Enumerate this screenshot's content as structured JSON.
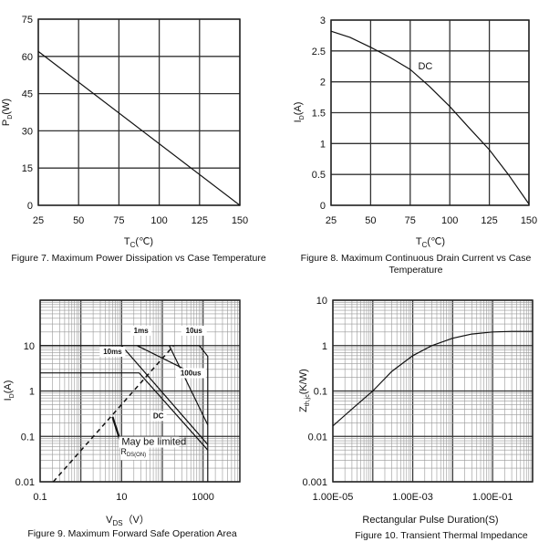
{
  "chart_data": [
    {
      "type": "line",
      "caption": [
        "Figure 7. Maximum Power Dissipation vs Case Temperature"
      ],
      "xlabel": {
        "main": "T",
        "sub": "C",
        "unit": "(℃)"
      },
      "ylabel": {
        "main": "P",
        "sub": "D",
        "unit": "(W)"
      },
      "xscale": "linear",
      "yscale": "linear",
      "xlim": [
        25,
        150
      ],
      "ylim": [
        0,
        75
      ],
      "xticks": [
        25,
        50,
        75,
        100,
        125,
        150
      ],
      "yticks": [
        0,
        15,
        30,
        45,
        60,
        75
      ],
      "xtick_labels": [
        "25",
        "50",
        "75",
        "100",
        "125",
        "150"
      ],
      "ytick_labels": [
        "0",
        "15",
        "30",
        "45",
        "60",
        "75"
      ],
      "grid": true,
      "series": [
        {
          "x": [
            25,
            150
          ],
          "y": [
            62,
            0
          ]
        }
      ]
    },
    {
      "type": "line",
      "caption": [
        "Figure 8. Maximum Continuous Drain Current vs Case",
        "Temperature"
      ],
      "xlabel": {
        "main": "T",
        "sub": "C",
        "unit": "(℃)"
      },
      "ylabel": {
        "main": "I",
        "sub": "D",
        "unit": "(A)"
      },
      "xscale": "linear",
      "yscale": "linear",
      "xlim": [
        25,
        150
      ],
      "ylim": [
        0,
        3
      ],
      "xticks": [
        25,
        50,
        75,
        100,
        125,
        150
      ],
      "yticks": [
        0,
        0.5,
        1,
        1.5,
        2,
        2.5,
        3
      ],
      "xtick_labels": [
        "25",
        "50",
        "75",
        "100",
        "125",
        "150"
      ],
      "ytick_labels": [
        "0",
        "0.5",
        "1",
        "1.5",
        "2",
        "2.5",
        "3"
      ],
      "grid": true,
      "annotations": [
        {
          "text": "DC",
          "x": 80,
          "y": 2.2
        }
      ],
      "series": [
        {
          "name": "DC",
          "x": [
            25,
            37,
            50,
            62,
            75,
            87,
            100,
            112,
            125,
            137,
            150
          ],
          "y": [
            2.82,
            2.72,
            2.56,
            2.4,
            2.2,
            1.93,
            1.6,
            1.26,
            0.9,
            0.5,
            0.02
          ]
        }
      ]
    },
    {
      "type": "line",
      "caption": [
        "Figure 9. Maximum Forward Safe Operation Area"
      ],
      "xlabel": {
        "main": "V",
        "sub": "DS",
        "unit": "（V）"
      },
      "ylabel": {
        "main": "I",
        "sub": "D",
        "unit": "(A)"
      },
      "xscale": "log",
      "yscale": "log",
      "xlim": [
        0.1,
        8000
      ],
      "ylim": [
        0.01,
        100
      ],
      "xticks": [
        0.1,
        10,
        1000
      ],
      "yticks": [
        0.01,
        0.1,
        1,
        10
      ],
      "xtick_labels": [
        "0.1",
        "10",
        "1000"
      ],
      "ytick_labels": [
        "0.01",
        "0.1",
        "1",
        "10"
      ],
      "grid": true,
      "annotations": [
        {
          "text": "1ms",
          "x": 30,
          "y": 19
        },
        {
          "text": "10us",
          "x": 600,
          "y": 19
        },
        {
          "text": "10ms",
          "x": 6,
          "y": 6.5
        },
        {
          "text": "100us",
          "x": 500,
          "y": 2.2
        },
        {
          "text": "DC",
          "x": 80,
          "y": 0.25
        },
        {
          "text": "May be limited",
          "x": 10,
          "y": 0.065
        },
        {
          "text": "RDS(ON)",
          "x": 10,
          "y": 0.04
        }
      ],
      "series": [
        {
          "name": "10us",
          "x": [
            0.1,
            810,
            1300,
            1300
          ],
          "y": [
            10,
            10,
            5.8,
            0.01
          ]
        },
        {
          "name": "100us",
          "x": [
            148,
            1300
          ],
          "y": [
            10,
            0.18
          ]
        },
        {
          "name": "1ms",
          "x": [
            24,
            540
          ],
          "y": [
            10,
            2.5
          ]
        },
        {
          "name": "10ms",
          "x": [
            10,
            1300
          ],
          "y": [
            10,
            0.066
          ]
        },
        {
          "name": "DC",
          "x": [
            0.1,
            27,
            1300
          ],
          "y": [
            2.5,
            2.5,
            0.05
          ]
        },
        {
          "name": "RDS(ON) limit",
          "style": "dashed",
          "x": [
            0.21,
            190
          ],
          "y": [
            0.01,
            10
          ]
        },
        {
          "name": "May be limited pointer",
          "x": [
            6,
            9.5
          ],
          "y": [
            0.27,
            0.075
          ]
        }
      ]
    },
    {
      "type": "line",
      "caption": [
        "Figure 10. Transient Thermal Impedance"
      ],
      "xlabel": {
        "main": "Rectangular Pulse Duration(S)",
        "sub": "",
        "unit": ""
      },
      "ylabel": {
        "main": "Z",
        "sub": "th,jc",
        "unit": "(K/W)"
      },
      "xscale": "log",
      "yscale": "log",
      "xlim": [
        1e-05,
        1
      ],
      "ylim": [
        0.001,
        10
      ],
      "xticks": [
        1e-05,
        0.001,
        0.1
      ],
      "yticks": [
        0.001,
        0.01,
        0.1,
        1,
        10
      ],
      "xtick_labels": [
        "1.00E-05",
        "1.00E-03",
        "1.00E-01"
      ],
      "ytick_labels": [
        "0.001",
        "0.01",
        "0.1",
        "1",
        "10"
      ],
      "grid": true,
      "series": [
        {
          "x": [
            1e-05,
            3e-05,
            0.0001,
            0.0003,
            0.001,
            0.003,
            0.01,
            0.03,
            0.1,
            0.3,
            1
          ],
          "y": [
            0.017,
            0.04,
            0.1,
            0.27,
            0.6,
            1.0,
            1.45,
            1.8,
            2.0,
            2.05,
            2.05
          ]
        }
      ]
    }
  ]
}
